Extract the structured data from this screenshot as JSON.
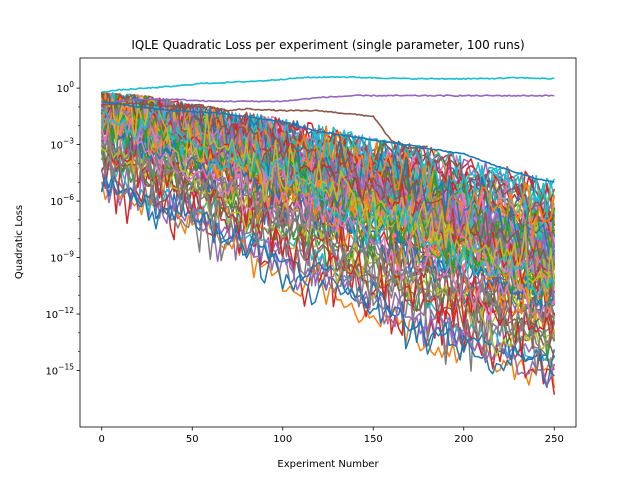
{
  "chart_data": {
    "type": "line",
    "title": "IQLE Quadratic Loss per experiment (single parameter, 100 runs)",
    "xlabel": "Experiment Number",
    "ylabel": "Quadratic Loss",
    "y_scale": "log",
    "xlim": [
      -12,
      262
    ],
    "ylim_exponent": [
      -18.0,
      1.6
    ],
    "x_ticks": [
      0,
      50,
      100,
      150,
      200,
      250
    ],
    "x_tick_labels": [
      "0",
      "50",
      "100",
      "150",
      "200",
      "250"
    ],
    "y_tick_exponents": [
      0,
      -3,
      -6,
      -9,
      -12,
      -15
    ],
    "y_tick_labels": [
      "10",
      "10",
      "10",
      "10",
      "10",
      "10"
    ],
    "y_tick_superscripts": [
      "0",
      "−3",
      "−6",
      "−9",
      "−12",
      "−15"
    ],
    "grid": false,
    "legend": "none",
    "series_count": 100,
    "colors": [
      "#1f77b4",
      "#ff7f0e",
      "#2ca02c",
      "#d62728",
      "#9467bd",
      "#8c564b",
      "#e377c2",
      "#7f7f7f",
      "#bcbd22",
      "#17becf"
    ],
    "notable_series": [
      {
        "color": "#17becf",
        "x": [
          0,
          10,
          25,
          40,
          55,
          70,
          90,
          110,
          130,
          150,
          170,
          190,
          210,
          230,
          250
        ],
        "y_exponent": [
          -0.2,
          -0.1,
          0.0,
          0.1,
          0.25,
          0.3,
          0.4,
          0.55,
          0.6,
          0.55,
          0.5,
          0.5,
          0.5,
          0.55,
          0.5
        ]
      },
      {
        "color": "#9467bd",
        "x": [
          0,
          20,
          40,
          60,
          80,
          100,
          120,
          140,
          160,
          180,
          200,
          220,
          240,
          250
        ],
        "y_exponent": [
          -0.8,
          -0.6,
          -0.6,
          -0.7,
          -0.7,
          -0.7,
          -0.5,
          -0.4,
          -0.4,
          -0.4,
          -0.4,
          -0.4,
          -0.4,
          -0.4
        ]
      },
      {
        "color": "#8c564b",
        "x": [
          0,
          20,
          40,
          60,
          70,
          80,
          100,
          120,
          140,
          150,
          160,
          170,
          180
        ],
        "y_exponent": [
          -0.9,
          -0.8,
          -1.0,
          -1.0,
          -1.2,
          -1.1,
          -1.2,
          -1.2,
          -1.4,
          -1.5,
          -2.8,
          -3.2,
          -3.1
        ]
      },
      {
        "color": "#1f77b4",
        "x": [
          0,
          20,
          40,
          60,
          80,
          100,
          120,
          140,
          160,
          180,
          200,
          220,
          240,
          250
        ],
        "y_exponent": [
          -0.7,
          -1.0,
          -1.2,
          -1.3,
          -1.5,
          -1.8,
          -2.3,
          -2.6,
          -2.9,
          -3.2,
          -3.5,
          -4.2,
          -4.8,
          -5.0
        ]
      }
    ],
    "envelope": {
      "x": [
        0,
        25,
        50,
        75,
        100,
        125,
        150,
        175,
        200,
        225,
        250
      ],
      "y_exponent_upper": [
        -0.2,
        -0.4,
        -0.8,
        -1.2,
        -1.6,
        -2.0,
        -2.6,
        -3.0,
        -3.6,
        -4.2,
        -4.8
      ],
      "y_exponent_median": [
        -1.5,
        -2.4,
        -3.3,
        -4.2,
        -5.0,
        -5.9,
        -6.8,
        -7.8,
        -8.8,
        -9.8,
        -10.8
      ],
      "y_exponent_lower": [
        -6.5,
        -8.0,
        -9.0,
        -10.3,
        -11.5,
        -12.8,
        -14.2,
        -15.2,
        -16.0,
        -16.6,
        -17.0
      ]
    }
  }
}
